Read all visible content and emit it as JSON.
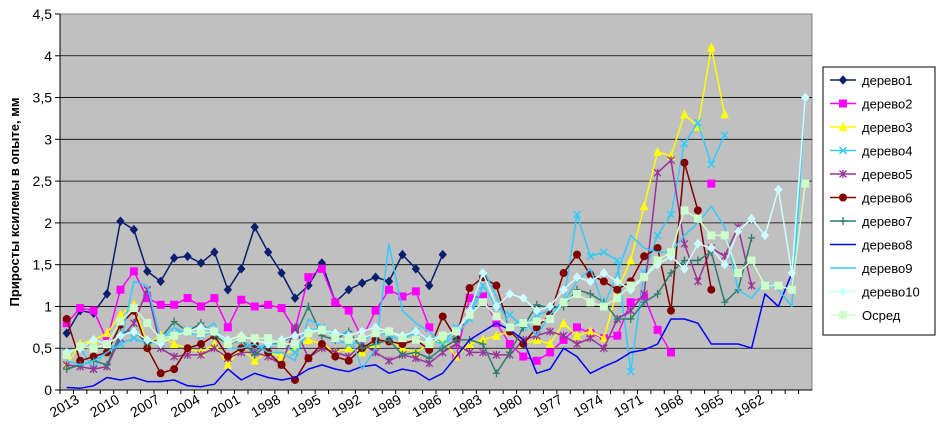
{
  "chart_data": {
    "type": "line",
    "title": "",
    "xlabel": "",
    "ylabel": "Приросты ксилемы в опыте, мм",
    "ylim": [
      0,
      4.5
    ],
    "yticks": [
      "0",
      "0,5",
      "1",
      "1,5",
      "2",
      "2,5",
      "3",
      "3,5",
      "4",
      "4,5"
    ],
    "ytick_values": [
      0,
      0.5,
      1,
      1.5,
      2,
      2.5,
      3,
      3.5,
      4,
      4.5
    ],
    "x": [
      2013,
      2012,
      2011,
      2010,
      2009,
      2008,
      2007,
      2006,
      2005,
      2004,
      2003,
      2002,
      2001,
      2000,
      1999,
      1998,
      1997,
      1996,
      1995,
      1994,
      1993,
      1992,
      1991,
      1990,
      1989,
      1988,
      1987,
      1986,
      1985,
      1984,
      1983,
      1982,
      1981,
      1980,
      1979,
      1978,
      1977,
      1976,
      1975,
      1974,
      1973,
      1972,
      1971,
      1970,
      1969,
      1968,
      1967,
      1966,
      1965,
      1964,
      1963,
      1962,
      1961,
      1960,
      1959,
      1958
    ],
    "xticks": [
      2013,
      2010,
      2007,
      2004,
      2001,
      1998,
      1995,
      1992,
      1989,
      1986,
      1983,
      1980,
      1977,
      1974,
      1971,
      1968,
      1965,
      1962
    ],
    "grid": true,
    "legend_position": "right",
    "series": [
      {
        "name": "дерево1",
        "color": "#0a1f6e",
        "marker": "diamond",
        "values": [
          0.68,
          0.95,
          0.92,
          1.15,
          2.02,
          1.92,
          1.42,
          1.3,
          1.58,
          1.6,
          1.52,
          1.65,
          1.2,
          1.45,
          1.95,
          1.65,
          1.4,
          1.1,
          1.25,
          1.52,
          1.05,
          1.2,
          1.28,
          1.35,
          1.3,
          1.62,
          1.45,
          1.25,
          1.62,
          null,
          null,
          null,
          null,
          null,
          null,
          null,
          null,
          null,
          null,
          null,
          null,
          null,
          null,
          null,
          null,
          null,
          null,
          null,
          null,
          null,
          null,
          null,
          null,
          null,
          null,
          null
        ]
      },
      {
        "name": "дерево2",
        "color": "#ff00ff",
        "marker": "square",
        "values": [
          0.8,
          0.98,
          0.95,
          0.6,
          1.2,
          1.42,
          1.1,
          1.02,
          1.02,
          1.1,
          1.0,
          1.1,
          0.75,
          1.08,
          1.0,
          1.02,
          0.98,
          0.72,
          1.35,
          1.45,
          1.05,
          0.95,
          0.62,
          0.95,
          1.2,
          1.12,
          1.18,
          0.75,
          null,
          0.4,
          1.1,
          1.12,
          0.8,
          0.55,
          0.4,
          0.35,
          0.45,
          0.6,
          0.75,
          0.68,
          0.62,
          0.65,
          1.05,
          1.12,
          0.72,
          0.45,
          null,
          null,
          2.47,
          null,
          null,
          null,
          null,
          null,
          null,
          null
        ]
      },
      {
        "name": "дерево3",
        "color": "#ffff00",
        "marker": "triangle",
        "values": [
          0.3,
          0.55,
          0.6,
          0.68,
          0.9,
          1.02,
          0.55,
          0.65,
          0.55,
          0.5,
          0.45,
          0.55,
          0.3,
          0.5,
          0.35,
          0.45,
          0.4,
          0.5,
          0.6,
          0.55,
          0.45,
          0.5,
          0.45,
          0.55,
          0.6,
          0.5,
          0.45,
          0.55,
          0.6,
          0.4,
          0.55,
          0.6,
          0.65,
          0.7,
          0.55,
          0.6,
          0.55,
          0.8,
          0.65,
          0.7,
          0.62,
          1.2,
          1.55,
          2.2,
          2.85,
          2.8,
          3.3,
          3.15,
          4.1,
          3.3,
          null,
          null,
          null,
          null,
          null,
          null
        ]
      },
      {
        "name": "дерево4",
        "color": "#33ccff",
        "marker": "x",
        "values": [
          0.45,
          0.5,
          0.25,
          0.5,
          0.55,
          0.62,
          0.55,
          0.6,
          0.68,
          0.72,
          0.65,
          0.7,
          0.55,
          0.6,
          0.5,
          0.55,
          0.55,
          0.45,
          0.7,
          0.75,
          0.6,
          0.55,
          0.58,
          0.7,
          0.65,
          0.6,
          0.7,
          0.6,
          0.55,
          0.75,
          0.85,
          1.25,
          1.0,
          0.9,
          0.75,
          0.9,
          0.95,
          1.05,
          2.1,
          1.6,
          1.65,
          1.55,
          0.22,
          1.4,
          1.85,
          2.1,
          2.95,
          3.2,
          2.7,
          3.05,
          null,
          null,
          null,
          null,
          null,
          null
        ]
      },
      {
        "name": "дерево5",
        "color": "#993399",
        "marker": "star",
        "values": [
          0.3,
          0.28,
          0.25,
          0.28,
          0.62,
          0.8,
          1.2,
          0.5,
          0.4,
          0.42,
          0.42,
          0.5,
          0.38,
          0.45,
          0.45,
          0.4,
          0.3,
          0.75,
          0.38,
          0.5,
          0.45,
          0.4,
          0.55,
          0.45,
          0.35,
          0.42,
          0.38,
          0.32,
          0.45,
          0.55,
          0.45,
          0.45,
          0.42,
          0.42,
          0.6,
          0.65,
          0.7,
          0.65,
          0.55,
          0.62,
          0.5,
          0.85,
          0.95,
          1.15,
          2.6,
          2.75,
          1.75,
          1.3,
          1.7,
          1.6,
          1.95,
          1.25,
          null,
          null,
          null,
          null
        ]
      },
      {
        "name": "дерево6",
        "color": "#800000",
        "marker": "circle",
        "values": [
          0.85,
          0.35,
          0.4,
          0.45,
          0.78,
          0.95,
          0.5,
          0.2,
          0.25,
          0.5,
          0.55,
          0.65,
          0.4,
          0.5,
          0.55,
          0.45,
          0.3,
          0.12,
          0.38,
          0.55,
          0.4,
          0.35,
          0.5,
          0.6,
          0.58,
          0.55,
          0.6,
          0.48,
          0.88,
          0.62,
          1.22,
          1.35,
          1.25,
          0.7,
          0.55,
          0.75,
          0.9,
          1.4,
          1.62,
          1.38,
          1.3,
          1.2,
          1.3,
          1.6,
          1.7,
          0.95,
          2.72,
          2.15,
          1.2,
          null,
          null,
          null,
          null,
          null,
          null,
          null
        ]
      },
      {
        "name": "дерево7",
        "color": "#2e7d6e",
        "marker": "plus",
        "values": [
          0.25,
          0.3,
          0.35,
          0.3,
          0.68,
          0.72,
          0.55,
          0.62,
          0.82,
          0.7,
          0.8,
          0.65,
          0.55,
          0.6,
          0.42,
          0.55,
          0.58,
          0.65,
          1.0,
          0.65,
          0.6,
          0.7,
          0.5,
          0.55,
          0.6,
          0.42,
          0.45,
          0.38,
          0.5,
          0.6,
          0.6,
          0.55,
          0.2,
          0.45,
          0.75,
          1.02,
          0.98,
          1.0,
          1.2,
          1.15,
          1.05,
          0.85,
          0.85,
          1.05,
          1.15,
          1.4,
          1.55,
          1.55,
          1.65,
          1.05,
          1.2,
          1.82,
          null,
          null,
          null,
          null
        ]
      },
      {
        "name": "дерево8",
        "color": "#0000ff",
        "marker": "none",
        "values": [
          0.03,
          0.02,
          0.05,
          0.15,
          0.12,
          0.15,
          0.1,
          0.1,
          0.12,
          0.05,
          0.04,
          0.07,
          0.25,
          0.12,
          0.2,
          0.15,
          0.12,
          0.15,
          0.25,
          0.3,
          0.25,
          0.22,
          0.28,
          0.3,
          0.2,
          0.25,
          0.22,
          0.12,
          0.2,
          0.4,
          0.6,
          0.7,
          0.8,
          0.72,
          0.6,
          0.2,
          0.25,
          0.5,
          0.4,
          0.2,
          0.28,
          0.35,
          0.45,
          0.48,
          0.55,
          0.85,
          0.85,
          0.8,
          0.55,
          0.55,
          0.55,
          0.5,
          1.15,
          1.0,
          1.4,
          null
        ]
      },
      {
        "name": "дерево9",
        "color": "#33ccff",
        "marker": "none",
        "values": [
          0.35,
          0.3,
          0.35,
          0.45,
          0.55,
          1.3,
          1.25,
          0.6,
          0.75,
          0.65,
          0.7,
          0.8,
          0.5,
          0.5,
          0.55,
          0.45,
          0.45,
          0.35,
          0.85,
          0.75,
          0.65,
          0.7,
          0.25,
          0.5,
          1.75,
          0.95,
          0.8,
          0.7,
          0.55,
          0.65,
          0.85,
          1.45,
          1.12,
          0.75,
          0.85,
          0.65,
          0.9,
          1.05,
          1.3,
          1.45,
          1.0,
          1.4,
          1.85,
          1.7,
          1.65,
          1.65,
          1.85,
          2.0,
          2.2,
          1.95,
          1.2,
          1.1,
          1.3,
          1.2,
          1.0,
          3.5
        ]
      },
      {
        "name": "дерево10",
        "color": "#ccffff",
        "marker": "diamond",
        "values": [
          0.45,
          0.5,
          0.6,
          0.55,
          0.65,
          0.7,
          0.6,
          0.55,
          0.65,
          0.7,
          0.75,
          0.7,
          0.6,
          0.65,
          0.6,
          0.55,
          0.6,
          0.65,
          0.7,
          0.72,
          0.68,
          0.65,
          0.7,
          0.75,
          0.7,
          0.65,
          0.7,
          0.6,
          0.65,
          0.7,
          0.95,
          1.4,
          1.0,
          1.15,
          1.1,
          0.95,
          1.0,
          1.2,
          1.35,
          1.3,
          1.4,
          1.3,
          1.2,
          1.35,
          1.5,
          1.6,
          1.45,
          1.75,
          1.7,
          1.5,
          1.9,
          2.05,
          1.85,
          2.4,
          1.4,
          3.5
        ]
      },
      {
        "name": "Осред",
        "color": "#ccffcc",
        "marker": "square",
        "values": [
          0.42,
          0.52,
          0.5,
          0.55,
          0.82,
          0.98,
          0.8,
          0.62,
          0.65,
          0.7,
          0.68,
          0.7,
          0.55,
          0.62,
          0.62,
          0.62,
          0.55,
          0.55,
          0.68,
          0.72,
          0.62,
          0.6,
          0.62,
          0.68,
          0.7,
          0.62,
          0.6,
          0.55,
          0.65,
          0.7,
          0.9,
          1.05,
          0.88,
          0.75,
          0.8,
          0.82,
          0.85,
          1.05,
          1.15,
          1.05,
          1.0,
          1.1,
          1.25,
          1.35,
          1.55,
          1.65,
          2.15,
          2.05,
          1.85,
          1.85,
          1.4,
          1.55,
          1.25,
          1.25,
          1.2,
          2.47
        ]
      }
    ]
  }
}
